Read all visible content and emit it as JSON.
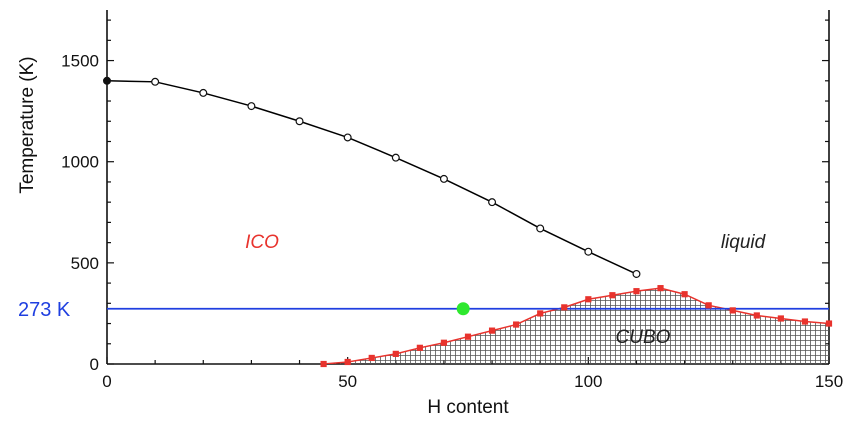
{
  "chart_data": {
    "type": "line",
    "title": "",
    "xlabel": "H content",
    "ylabel": "Temperature (K)",
    "xlim": [
      0,
      150
    ],
    "ylim": [
      0,
      1750
    ],
    "xticks": [
      0,
      50,
      100,
      150
    ],
    "yticks": [
      0,
      500,
      1000,
      1500
    ],
    "grid": false,
    "series": [
      {
        "color": "#000000",
        "marker": "open-circle",
        "x": [
          0,
          10,
          20,
          30,
          40,
          50,
          60,
          70,
          80,
          90,
          100,
          110
        ],
        "y": [
          1400,
          1395,
          1340,
          1275,
          1200,
          1120,
          1020,
          915,
          800,
          670,
          555,
          445
        ]
      },
      {
        "color": "#e8332d",
        "marker": "filled-square",
        "x": [
          45,
          50,
          55,
          60,
          65,
          70,
          75,
          80,
          85,
          90,
          95,
          100,
          105,
          110,
          115,
          120,
          125,
          130,
          135,
          140,
          145,
          150
        ],
        "y": [
          0,
          10,
          30,
          50,
          80,
          105,
          135,
          165,
          195,
          250,
          280,
          320,
          340,
          360,
          375,
          345,
          290,
          265,
          240,
          225,
          210,
          200
        ]
      }
    ],
    "reference_line": {
      "y": 273,
      "label": "273 K",
      "color": "#1f3fe0"
    },
    "highlight_point": {
      "x": 74,
      "y": 273,
      "color": "#2ee82e"
    },
    "regions": [
      {
        "label": "ICO",
        "color": "#e8332d"
      },
      {
        "label": "liquid",
        "color": "#222222"
      },
      {
        "label": "CUBO",
        "color": "#222222"
      }
    ]
  }
}
